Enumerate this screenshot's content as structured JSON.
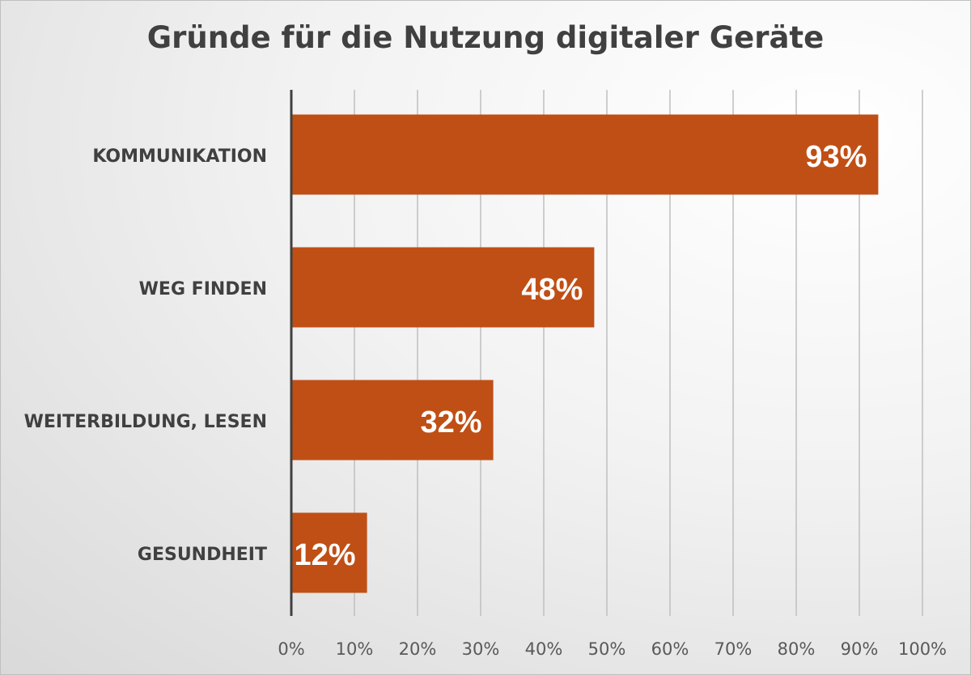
{
  "chart_data": {
    "type": "bar",
    "orientation": "horizontal",
    "title": "Gründe für die Nutzung digitaler Geräte",
    "categories": [
      "KOMMUNIKATION",
      "WEG FINDEN",
      "WEITERBILDUNG, LESEN",
      "GESUNDHEIT"
    ],
    "values": [
      93,
      48,
      32,
      12
    ],
    "data_labels": [
      "93%",
      "48%",
      "32%",
      "12%"
    ],
    "xlim": [
      0,
      100
    ],
    "x_ticks": [
      "0%",
      "10%",
      "20%",
      "30%",
      "40%",
      "50%",
      "60%",
      "70%",
      "80%",
      "90%",
      "100%"
    ],
    "grid": true,
    "legend": "none",
    "colors": {
      "bar": "#C04F15",
      "text": "#404040",
      "grid": "#bfbfbf",
      "axis": "#404040",
      "label": "#ffffff"
    }
  }
}
